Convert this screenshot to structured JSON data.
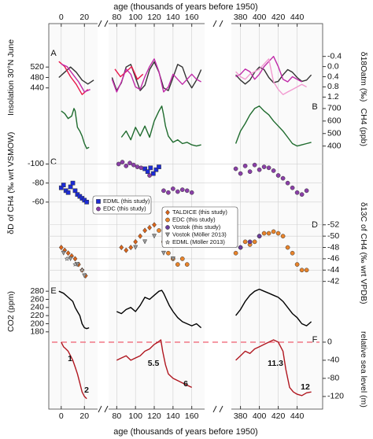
{
  "chart_data": {
    "type": "multi-panel",
    "xlabel": "age (thousands of years before 1950)",
    "x_segments": [
      [
        -8,
        30
      ],
      [
        73,
        172
      ],
      [
        372,
        462
      ]
    ],
    "xticks": [
      0,
      20,
      80,
      100,
      120,
      140,
      160,
      380,
      400,
      420,
      440
    ],
    "grid": true,
    "panels": [
      {
        "type": "line",
        "letter": "A",
        "ylabel": "Insolation 30°N June",
        "y_side": "left",
        "ylim": [
          400,
          590
        ],
        "yticks": [
          440,
          480,
          520
        ],
        "y2label": "δ18Oatm (‰)",
        "y2lim": [
          1.25,
          -0.7
        ],
        "y2ticks": [
          -0.4,
          {
            "value": 0,
            "label": "0.0"
          },
          0.4,
          0.8,
          1.2
        ],
        "series": [
          {
            "color": "#333333",
            "axis": "y",
            "x": [
              -2,
              3,
              8,
              13,
              18,
              23,
              28,
              null,
              75,
              80,
              85,
              90,
              95,
              100,
              105,
              110,
              115,
              120,
              125,
              130,
              135,
              140,
              145,
              150,
              155,
              160,
              165,
              170,
              null,
              375,
              380,
              385,
              390,
              395,
              400,
              405,
              410,
              415,
              420,
              425,
              430,
              435,
              440,
              445,
              450,
              455
            ],
            "values": [
              480,
              500,
              520,
              500,
              470,
              455,
              470,
              null,
              480,
              430,
              460,
              520,
              530,
              480,
              430,
              450,
              510,
              540,
              500,
              440,
              430,
              480,
              530,
              520,
              470,
              440,
              470,
              510,
              null,
              490,
              470,
              455,
              470,
              500,
              520,
              510,
              480,
              460,
              465,
              490,
              510,
              500,
              480,
              465,
              470,
              490
            ]
          },
          {
            "color": "#e8174a",
            "axis": "y2",
            "x": [
              -2,
              3,
              8,
              13,
              18,
              23,
              null,
              78,
              84,
              90,
              96,
              102,
              108
            ],
            "values": [
              -0.2,
              0.0,
              0.4,
              0.7,
              1.1,
              0.9,
              null,
              0.1,
              0.4,
              0.2,
              0.0,
              0.5,
              0.3
            ]
          },
          {
            "color": "#c02aa8",
            "axis": "y2",
            "x": [
              0,
              5,
              10,
              15,
              20,
              25,
              null,
              75,
              80,
              85,
              90,
              95,
              100,
              105,
              110,
              115,
              120,
              125,
              130,
              135,
              140,
              145,
              150,
              155,
              160,
              165,
              170,
              null,
              375,
              380,
              385,
              390,
              395,
              400,
              405,
              410,
              415,
              420,
              425,
              430,
              435,
              440,
              445
            ],
            "values": [
              -0.1,
              0.0,
              0.3,
              0.6,
              1.0,
              0.9,
              null,
              0.5,
              1.0,
              0.6,
              0.1,
              0.3,
              0.8,
              0.9,
              0.4,
              0.0,
              -0.3,
              0.2,
              1.0,
              0.8,
              0.3,
              0.5,
              0.7,
              0.5,
              0.3,
              0.5,
              0.6,
              null,
              0.4,
              0.3,
              0.1,
              0.2,
              0.5,
              0.3,
              0.0,
              -0.2,
              -0.4,
              0.0,
              0.5,
              0.6,
              0.4,
              0.5,
              0.6
            ]
          },
          {
            "color": "#f29ad0",
            "axis": "y2",
            "x": [
              375,
              380,
              385,
              390,
              395,
              400,
              405,
              410,
              415,
              420,
              425,
              430,
              435,
              440,
              445,
              450
            ],
            "values": [
              0.2,
              0.4,
              0.5,
              0.3,
              0.2,
              0.1,
              -0.1,
              -0.3,
              0.6,
              0.9,
              1.1,
              1.0,
              0.9,
              0.8,
              0.7,
              0.8
            ]
          }
        ]
      },
      {
        "type": "line",
        "letter": "B",
        "ylabel": "CH4 (ppb)",
        "y_side": "right",
        "ylim": [
          360,
          750
        ],
        "yticks": [
          400,
          500,
          600,
          700
        ],
        "series": [
          {
            "color": "#1f6b2e",
            "axis": "y",
            "x": [
              0,
              3,
              6,
              9,
              11,
              12,
              14,
              16,
              18,
              20,
              22,
              24,
              null,
              85,
              90,
              95,
              100,
              105,
              110,
              115,
              120,
              125,
              128,
              130,
              132,
              135,
              140,
              145,
              150,
              155,
              160,
              165,
              170,
              null,
              375,
              380,
              385,
              390,
              395,
              400,
              405,
              410,
              415,
              420,
              425,
              430,
              435,
              440,
              445,
              450,
              455
            ],
            "values": [
              680,
              660,
              620,
              640,
              700,
              680,
              550,
              520,
              480,
              420,
              380,
              390,
              null,
              470,
              520,
              450,
              550,
              480,
              560,
              470,
              600,
              680,
              720,
              650,
              560,
              480,
              430,
              450,
              420,
              430,
              410,
              400,
              410,
              null,
              420,
              520,
              580,
              650,
              700,
              720,
              680,
              650,
              600,
              560,
              520,
              470,
              420,
              400,
              410,
              420,
              430
            ]
          }
        ]
      },
      {
        "type": "scatter",
        "letter": "C",
        "ylabel": "δD of CH4 (‰ wrt VSMOW)",
        "y_side": "left",
        "ylim": [
          -45,
          -107
        ],
        "yticks": [
          -100,
          -80,
          -60
        ],
        "legend": "inside-left",
        "series": [
          {
            "name": "EDML (this study)",
            "color": "#1c2bd6",
            "marker": "square",
            "x": [
              0,
              2,
              4,
              6,
              8,
              10,
              12,
              14,
              16,
              18,
              20,
              22,
              110,
              113,
              116,
              119,
              122,
              125
            ],
            "values": [
              -75,
              -78,
              -72,
              -70,
              -76,
              -80,
              -72,
              -68,
              -66,
              -64,
              -62,
              -60,
              -95,
              -92,
              -96,
              -90,
              -94,
              -97
            ]
          },
          {
            "name": "EDC (this study)",
            "color": "#8a3fa8",
            "marker": "circle",
            "x": [
              82,
              86,
              90,
              94,
              98,
              102,
              106,
              115,
              130,
              135,
              140,
              145,
              150,
              155,
              160,
              375,
              380,
              385,
              390,
              395,
              400,
              405,
              410,
              415,
              420,
              425,
              430,
              435,
              440,
              445,
              450
            ],
            "values": [
              -100,
              -102,
              -98,
              -101,
              -99,
              -97,
              -96,
              -88,
              -72,
              -70,
              -74,
              -71,
              -73,
              -72,
              -70,
              -95,
              -90,
              -98,
              -92,
              -99,
              -94,
              -97,
              -96,
              -93,
              -88,
              -85,
              -80,
              -75,
              -70,
              -68,
              -72
            ]
          }
        ]
      },
      {
        "type": "scatter",
        "letter": "D",
        "ylabel": "δ13C of CH4 (‰ wrt VPDB)",
        "y_side": "right",
        "ylim": [
          -41.4,
          -52.8
        ],
        "yticks": [
          -52,
          -50,
          -48,
          -46,
          -44,
          -42
        ],
        "legend": "inside-center",
        "series": [
          {
            "name": "TALDICE (this study)",
            "color": "#d9641a",
            "marker": "diamond",
            "x": [
              0,
              3,
              6,
              9,
              12,
              15,
              18,
              21,
              85,
              90,
              95,
              100,
              105,
              110,
              115,
              120
            ],
            "values": [
              -48,
              -47.5,
              -47,
              -46.5,
              -46,
              -45,
              -44,
              -43,
              -48,
              -47.5,
              -48,
              -49,
              -50,
              -51,
              -51.5,
              -52
            ]
          },
          {
            "name": "EDC (this study)",
            "color": "#e8832a",
            "marker": "circle",
            "x": [
              125,
              130,
              135,
              140,
              145,
              150,
              155,
              375,
              380,
              385,
              390,
              395,
              400,
              405,
              410,
              415,
              420,
              425,
              430,
              435,
              440,
              445,
              450
            ],
            "values": [
              -51,
              -49,
              -47,
              -46,
              -45,
              -46,
              -45,
              -47,
              -48,
              -49,
              -48.5,
              -49,
              -50,
              -50.5,
              -50.5,
              -50.8,
              -50.5,
              -50,
              -48,
              -47,
              -45,
              -44,
              -44
            ]
          },
          {
            "name": "Vostok (this study)",
            "color": "#6a3d9a",
            "marker": "circle",
            "x": [
              380,
              390,
              400
            ],
            "values": [
              -48,
              -49,
              -50
            ]
          },
          {
            "name": "Vostok (Möller 2013)",
            "color": "#999999",
            "marker": "triangle",
            "x": [
              2,
              8,
              14,
              20,
              100,
              110,
              120,
              130,
              140
            ],
            "values": [
              -47,
              -46,
              -45,
              -43,
              -48,
              -49,
              -50,
              -47,
              -46
            ]
          },
          {
            "name": "EDML (Möller 2013)",
            "color": "#c8c8c8",
            "marker": "star",
            "x": [
              5,
              12,
              18
            ],
            "values": [
              -46,
              -45,
              -44
            ]
          }
        ]
      },
      {
        "type": "line",
        "letter": "E",
        "ylabel": "CO2 (ppm)",
        "y_side": "left",
        "ylim": [
          168,
          290
        ],
        "yticks": [
          180,
          200,
          220,
          240,
          260,
          280
        ],
        "series": [
          {
            "color": "#000000",
            "axis": "y",
            "x": [
              -2,
              2,
              6,
              10,
              12,
              14,
              16,
              18,
              20,
              22,
              24,
              null,
              80,
              85,
              90,
              95,
              100,
              105,
              110,
              115,
              120,
              125,
              128,
              130,
              133,
              136,
              140,
              145,
              150,
              155,
              160,
              165,
              170,
              null,
              375,
              380,
              385,
              390,
              395,
              400,
              405,
              410,
              415,
              420,
              425,
              430,
              435,
              440,
              445,
              450,
              455
            ],
            "values": [
              280,
              275,
              265,
              255,
              240,
              230,
              220,
              200,
              190,
              188,
              190,
              null,
              230,
              225,
              235,
              240,
              230,
              245,
              265,
              260,
              270,
              280,
              282,
              275,
              260,
              245,
              230,
              215,
              205,
              200,
              195,
              200,
              190,
              null,
              220,
              235,
              255,
              270,
              280,
              285,
              280,
              275,
              270,
              265,
              255,
              240,
              225,
              215,
              200,
              195,
              205
            ]
          }
        ]
      },
      {
        "type": "line",
        "letter": "F",
        "ylabel": "relative sea level (m)",
        "y_side": "right",
        "ylim": [
          -134,
          12
        ],
        "yticks": [
          0,
          -40,
          -80,
          -120
        ],
        "reference_line": 0,
        "annotations": [
          "1",
          "2",
          "5.5",
          "6",
          "11.3",
          "12"
        ],
        "series": [
          {
            "color": "#b0161f",
            "axis": "y",
            "x": [
              0,
              2,
              4,
              6,
              8,
              10,
              12,
              14,
              16,
              18,
              20,
              22,
              null,
              80,
              85,
              90,
              95,
              100,
              105,
              110,
              115,
              120,
              124,
              127,
              129,
              132,
              135,
              140,
              145,
              150,
              155,
              160,
              null,
              375,
              380,
              385,
              390,
              395,
              400,
              405,
              410,
              415,
              420,
              425,
              428,
              432,
              436,
              440,
              445,
              450,
              455
            ],
            "values": [
              0,
              -10,
              -15,
              -20,
              -30,
              -40,
              -55,
              -70,
              -90,
              -110,
              -120,
              -125,
              null,
              -40,
              -35,
              -30,
              -40,
              -35,
              -30,
              -20,
              -15,
              -5,
              0,
              5,
              -20,
              -50,
              -70,
              -80,
              -85,
              -90,
              -95,
              -100,
              null,
              -40,
              -30,
              -20,
              -25,
              -15,
              -10,
              -5,
              0,
              5,
              0,
              -20,
              -60,
              -100,
              -110,
              -115,
              -118,
              -112,
              -110
            ]
          }
        ]
      }
    ]
  }
}
